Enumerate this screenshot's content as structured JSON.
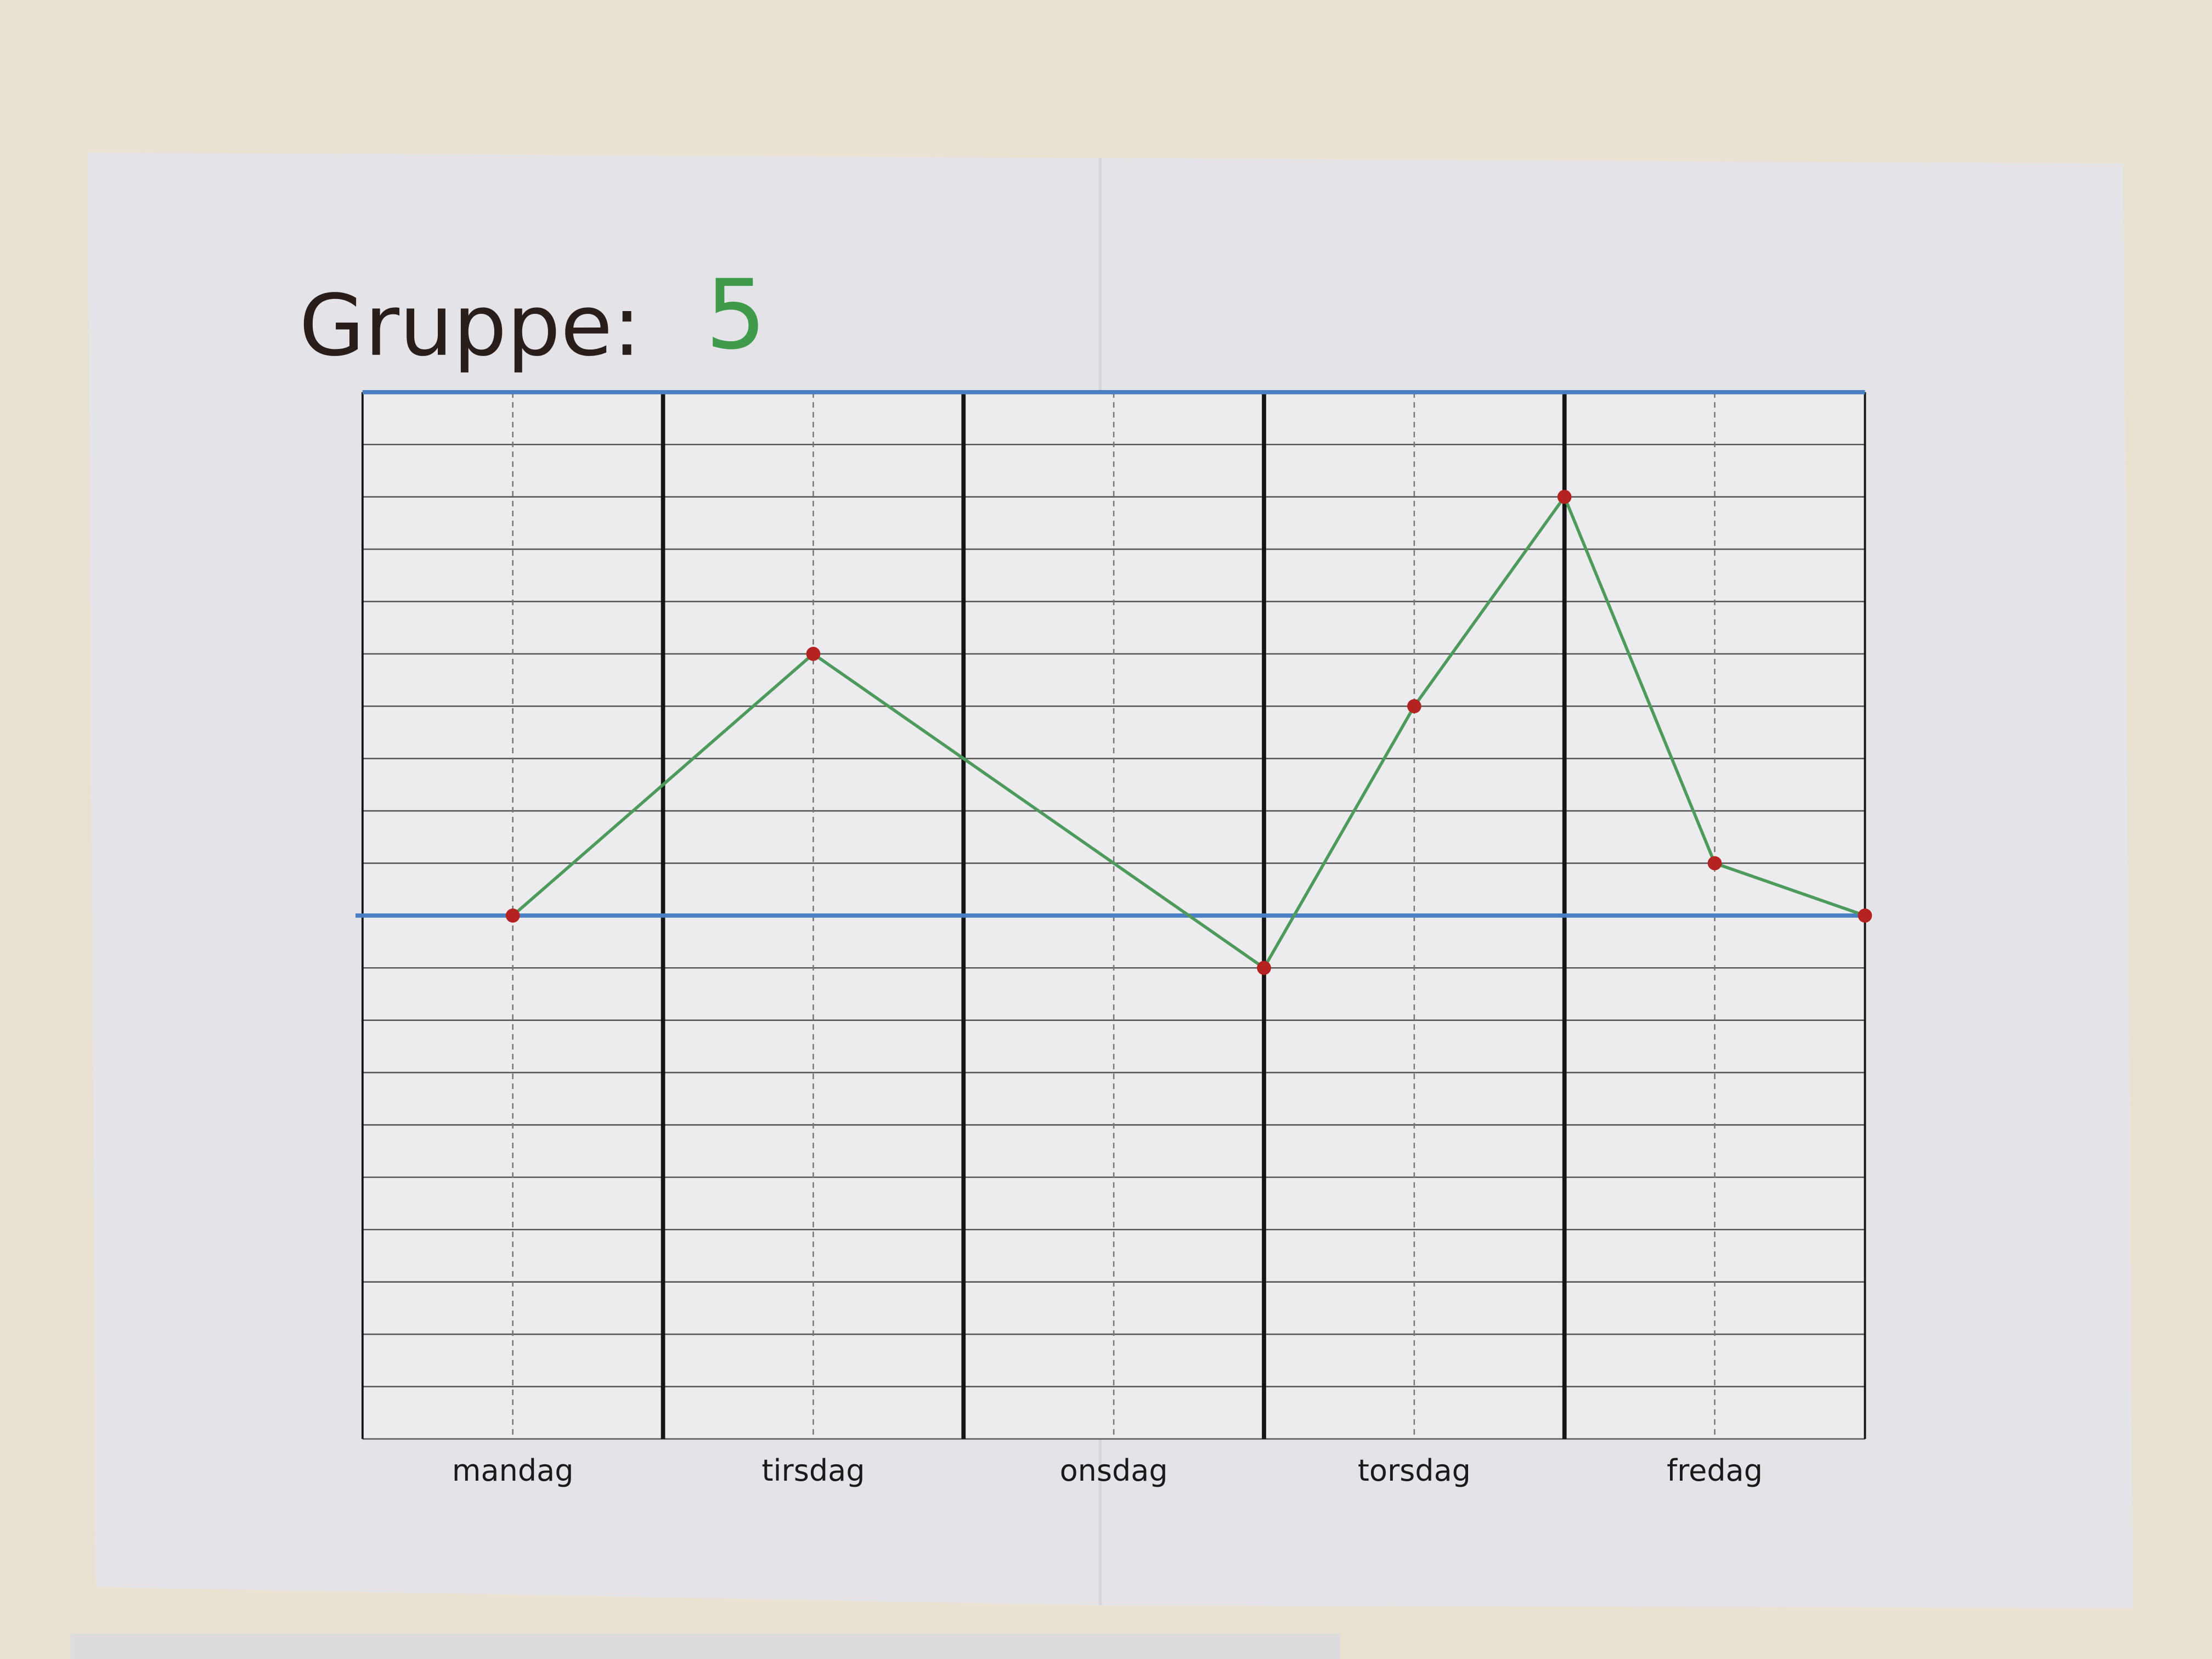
{
  "chart_data": {
    "type": "line",
    "title": "Gruppe:",
    "group": "5",
    "xlim": [
      0,
      5
    ],
    "xticks": [
      {
        "value": 0.5,
        "label": "mandag"
      },
      {
        "value": 1.5,
        "label": "tirsdag"
      },
      {
        "value": 2.5,
        "label": "onsdag"
      },
      {
        "value": 3.5,
        "label": "torsdag"
      },
      {
        "value": 4.5,
        "label": "fredag"
      }
    ],
    "ylim": [
      -10,
      10
    ],
    "grid": true,
    "grid_step": 1,
    "baseline": 0,
    "series": [
      {
        "color": "#4e9a5c",
        "marker_color": "#b52222",
        "x": [
          0.5,
          1.5,
          3,
          3.5,
          4,
          4.5,
          5
        ],
        "values": [
          0,
          5,
          -1,
          4,
          8,
          1,
          0
        ]
      }
    ]
  }
}
